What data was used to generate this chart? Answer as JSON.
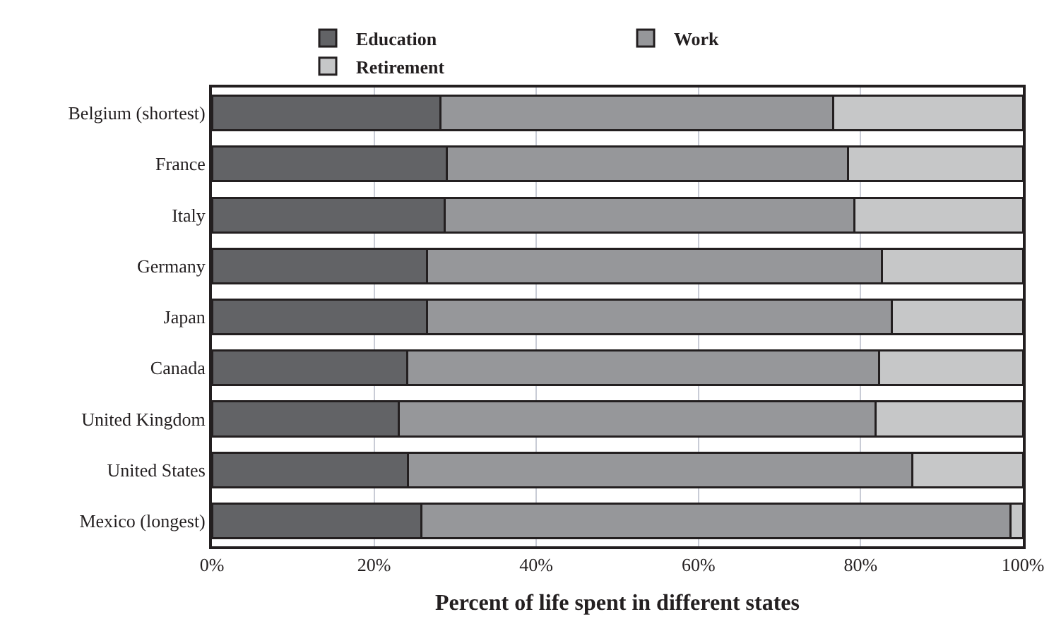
{
  "chart_data": {
    "type": "bar",
    "orientation": "horizontal",
    "stacked": true,
    "xlabel": "Percent of life spent in different states",
    "categories": [
      "Belgium (shortest)",
      "France",
      "Italy",
      "Germany",
      "Japan",
      "Canada",
      "United Kingdom",
      "United States",
      "Mexico (longest)"
    ],
    "series": [
      {
        "name": "Education",
        "color": "#626366",
        "values": [
          28.2,
          29.0,
          28.7,
          26.5,
          26.5,
          24.1,
          23.0,
          24.2,
          25.8
        ]
      },
      {
        "name": "Work",
        "color": "#96979a",
        "values": [
          48.4,
          49.4,
          50.5,
          56.1,
          57.3,
          58.2,
          58.8,
          62.2,
          72.7
        ]
      },
      {
        "name": "Retirement",
        "color": "#c6c7c8",
        "values": [
          23.4,
          21.6,
          20.8,
          17.4,
          16.2,
          17.7,
          18.2,
          13.6,
          1.5
        ]
      }
    ],
    "xlim": [
      0,
      100
    ],
    "xticks": [
      {
        "value": 0,
        "label": "0%"
      },
      {
        "value": 20,
        "label": "20%"
      },
      {
        "value": 40,
        "label": "40%"
      },
      {
        "value": 60,
        "label": "60%"
      },
      {
        "value": 80,
        "label": "80%"
      },
      {
        "value": 100,
        "label": "100%"
      }
    ],
    "grid": "x",
    "legend": "top"
  }
}
